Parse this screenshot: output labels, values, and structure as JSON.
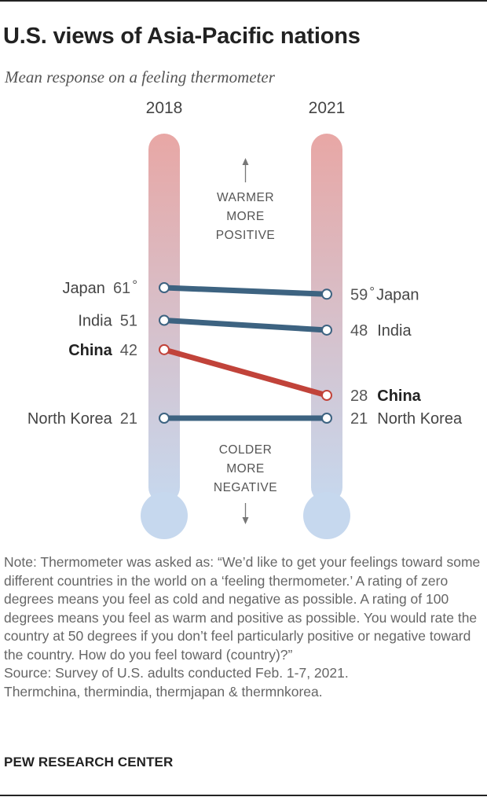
{
  "title": "U.S. views of Asia-Pacific nations",
  "subtitle": "Mean response on a feeling thermometer",
  "chart_data": {
    "type": "slope",
    "periods": [
      "2018",
      "2021"
    ],
    "series": [
      {
        "name": "Japan",
        "values": [
          61,
          59
        ],
        "label_2018": "61",
        "label_2021": "59",
        "unit": "°",
        "highlight": false,
        "color": "#3d6381"
      },
      {
        "name": "India",
        "values": [
          51,
          48
        ],
        "label_2018": "51",
        "label_2021": "48",
        "unit": "",
        "highlight": false,
        "color": "#3d6381"
      },
      {
        "name": "China",
        "values": [
          42,
          28
        ],
        "label_2018": "42",
        "label_2021": "28",
        "unit": "",
        "highlight": true,
        "color": "#c1433a"
      },
      {
        "name": "North Korea",
        "values": [
          21,
          21
        ],
        "label_2018": "21",
        "label_2021": "21",
        "unit": "",
        "highlight": false,
        "color": "#3d6381"
      }
    ],
    "annotations": {
      "warmer": [
        "WARMER",
        "MORE",
        "POSITIVE"
      ],
      "colder": [
        "COLDER",
        "MORE",
        "NEGATIVE"
      ]
    },
    "colors": {
      "warm": "#e8a7a5",
      "cold": "#c6d8ee",
      "text": "#555555"
    }
  },
  "note": "Note: Thermometer was asked as: “We’d like to get your feelings toward some different countries in the world on a ‘feeling thermometer.’ A rating of zero degrees means you feel as cold and negative as possible. A rating of 100 degrees means you feel as warm and positive as possible. You would rate the country at 50 degrees if you don’t feel particularly positive or negative toward the country. How do you feel toward (country)?”",
  "source": "Source: Survey of U.S. adults conducted Feb. 1-7, 2021.",
  "source2": "Thermchina, thermindia, thermjapan & thermnkorea.",
  "brand": "PEW RESEARCH CENTER"
}
